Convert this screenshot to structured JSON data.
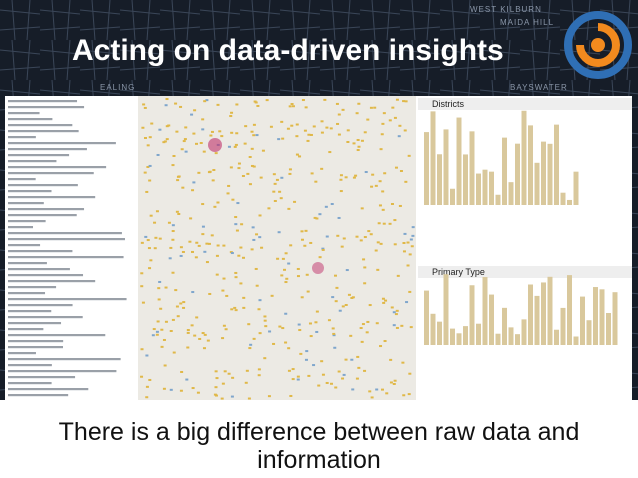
{
  "header": {
    "title": "Acting on data-driven insights"
  },
  "map_labels": [
    "WEST KILBURN",
    "MAIDA HILL",
    "EALING",
    "BAYSWATER"
  ],
  "panels": {
    "districts": "Districts",
    "primary_type": "Primary Type"
  },
  "caption": {
    "line1": "There is a big difference between raw data and",
    "line2": "information"
  }
}
